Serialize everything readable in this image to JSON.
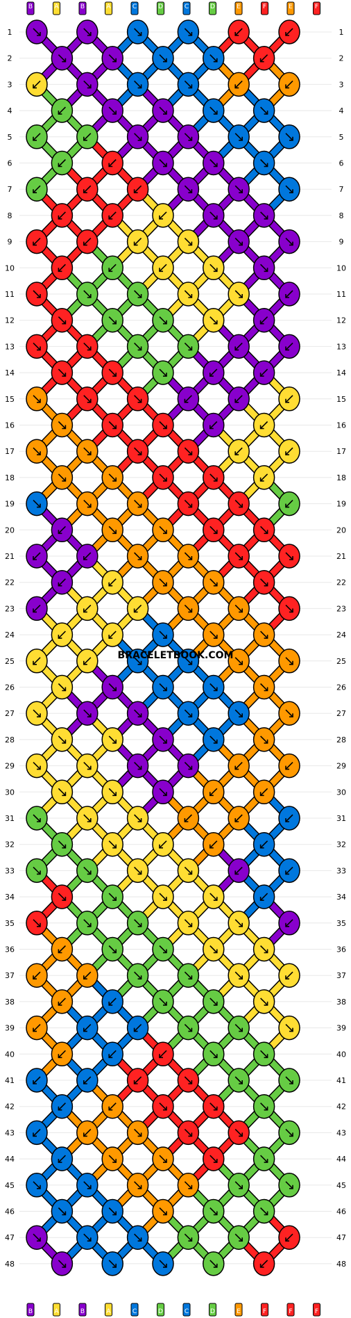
{
  "colors": {
    "B": "#8800cc",
    "A": "#ffdd33",
    "C": "#0077dd",
    "D": "#66cc44",
    "E": "#ff9900",
    "F": "#ff2222"
  },
  "top_strings": [
    "B",
    "A",
    "B",
    "A",
    "C",
    "D",
    "C",
    "D",
    "E",
    "F",
    "E",
    "F"
  ],
  "bottom_strings": [
    "B",
    "A",
    "B",
    "A",
    "C",
    "D",
    "C",
    "D",
    "E",
    "F",
    "F",
    "F"
  ],
  "row_numbers": [
    "1",
    "2",
    "3",
    "4",
    "5",
    "6",
    "7",
    "8",
    "9",
    "10",
    "11",
    "12",
    "13",
    "14",
    "15",
    "16",
    "17",
    "18",
    "19",
    "20",
    "21",
    "22",
    "23",
    "24",
    "25",
    "26",
    "27",
    "28",
    "29",
    "30",
    "31",
    "32",
    "33",
    "34",
    "35",
    "36",
    "37",
    "38",
    "39",
    "40",
    "41",
    "42",
    "43",
    "44",
    "45",
    "46",
    "47",
    "48"
  ],
  "watermark": "BRACELETBOOK.COM",
  "knots": [
    [
      "B",
      "B",
      "C",
      "C",
      "F",
      "F"
    ],
    [
      "B",
      "B",
      "C",
      "C",
      "F"
    ],
    [
      "A",
      "B",
      "C",
      "C",
      "E",
      "E"
    ],
    [
      "D",
      "B",
      "B",
      "C",
      "C"
    ],
    [
      "D",
      "D",
      "B",
      "B",
      "C",
      "C"
    ],
    [
      "D",
      "F",
      "B",
      "B",
      "C"
    ],
    [
      "D",
      "F",
      "F",
      "B",
      "B",
      "C"
    ],
    [
      "F",
      "F",
      "A",
      "B",
      "B"
    ],
    [
      "F",
      "F",
      "A",
      "A",
      "B",
      "B"
    ],
    [
      "F",
      "D",
      "A",
      "A",
      "B"
    ],
    [
      "F",
      "D",
      "D",
      "A",
      "A",
      "B"
    ],
    [
      "F",
      "D",
      "D",
      "A",
      "B"
    ],
    [
      "F",
      "F",
      "D",
      "D",
      "B",
      "B"
    ],
    [
      "F",
      "F",
      "D",
      "B",
      "B"
    ],
    [
      "E",
      "F",
      "F",
      "B",
      "B",
      "A"
    ],
    [
      "E",
      "F",
      "F",
      "B",
      "A"
    ],
    [
      "E",
      "E",
      "F",
      "F",
      "A",
      "A"
    ],
    [
      "E",
      "E",
      "F",
      "F",
      "A"
    ],
    [
      "C",
      "E",
      "E",
      "F",
      "F",
      "D"
    ],
    [
      "B",
      "E",
      "E",
      "F",
      "F"
    ],
    [
      "B",
      "B",
      "E",
      "E",
      "F",
      "F"
    ],
    [
      "B",
      "A",
      "E",
      "E",
      "F"
    ],
    [
      "B",
      "A",
      "A",
      "E",
      "E",
      "F"
    ],
    [
      "A",
      "A",
      "C",
      "E",
      "E"
    ],
    [
      "A",
      "A",
      "C",
      "C",
      "E",
      "E"
    ],
    [
      "A",
      "B",
      "C",
      "C",
      "E"
    ],
    [
      "A",
      "B",
      "B",
      "C",
      "C",
      "E"
    ],
    [
      "A",
      "A",
      "B",
      "C",
      "E"
    ],
    [
      "A",
      "A",
      "B",
      "B",
      "E",
      "E"
    ],
    [
      "A",
      "A",
      "B",
      "E",
      "E"
    ],
    [
      "D",
      "A",
      "A",
      "E",
      "E",
      "C"
    ],
    [
      "D",
      "A",
      "A",
      "E",
      "C"
    ],
    [
      "D",
      "D",
      "A",
      "A",
      "B",
      "C"
    ],
    [
      "F",
      "D",
      "A",
      "A",
      "C"
    ],
    [
      "F",
      "D",
      "D",
      "A",
      "A",
      "B"
    ],
    [
      "E",
      "D",
      "D",
      "A",
      "A"
    ],
    [
      "E",
      "E",
      "D",
      "D",
      "A",
      "A"
    ],
    [
      "E",
      "C",
      "D",
      "D",
      "A"
    ],
    [
      "E",
      "C",
      "C",
      "D",
      "D",
      "A"
    ],
    [
      "E",
      "C",
      "F",
      "D",
      "D"
    ],
    [
      "C",
      "C",
      "F",
      "F",
      "D",
      "D"
    ],
    [
      "C",
      "E",
      "F",
      "F",
      "D"
    ],
    [
      "C",
      "E",
      "E",
      "F",
      "F",
      "D"
    ],
    [
      "C",
      "E",
      "E",
      "F",
      "D"
    ],
    [
      "C",
      "C",
      "E",
      "E",
      "D",
      "D"
    ],
    [
      "C",
      "C",
      "E",
      "D",
      "D"
    ],
    [
      "B",
      "C",
      "C",
      "D",
      "D",
      "F"
    ],
    [
      "B",
      "C",
      "C",
      "D",
      "F"
    ]
  ],
  "arrows": [
    [
      "dr",
      "dr",
      "dr",
      "dr",
      "dl",
      "dl"
    ],
    [
      "dr",
      "dr",
      "dr",
      "dr",
      "dl"
    ],
    [
      "dl",
      "dr",
      "dr",
      "dr",
      "dl",
      "dl"
    ],
    [
      "dl",
      "dr",
      "dr",
      "dr",
      "dr"
    ],
    [
      "dl",
      "dl",
      "dr",
      "dr",
      "dr",
      "dr"
    ],
    [
      "dl",
      "dl",
      "dr",
      "dr",
      "dr"
    ],
    [
      "dl",
      "dl",
      "dl",
      "dr",
      "dr",
      "dr"
    ],
    [
      "dl",
      "dl",
      "dl",
      "dr",
      "dr"
    ],
    [
      "dl",
      "dl",
      "dl",
      "dr",
      "dr",
      "dr"
    ],
    [
      "dl",
      "dl",
      "dl",
      "dr",
      "dr"
    ],
    [
      "dr",
      "dr",
      "dr",
      "dr",
      "dr",
      "dl"
    ],
    [
      "dr",
      "dr",
      "dr",
      "dr",
      "dl"
    ],
    [
      "dr",
      "dr",
      "dr",
      "dr",
      "dl",
      "dl"
    ],
    [
      "dr",
      "dr",
      "dr",
      "dl",
      "dl"
    ],
    [
      "dr",
      "dr",
      "dr",
      "dl",
      "dl",
      "dl"
    ],
    [
      "dr",
      "dr",
      "dr",
      "dl",
      "dl"
    ],
    [
      "dr",
      "dr",
      "dr",
      "dr",
      "dl",
      "dl"
    ],
    [
      "dr",
      "dr",
      "dr",
      "dr",
      "dl"
    ],
    [
      "dr",
      "dr",
      "dr",
      "dr",
      "dr",
      "dl"
    ],
    [
      "dl",
      "dr",
      "dr",
      "dr",
      "dr"
    ],
    [
      "dl",
      "dl",
      "dr",
      "dr",
      "dr",
      "dr"
    ],
    [
      "dl",
      "dl",
      "dr",
      "dr",
      "dr"
    ],
    [
      "dl",
      "dl",
      "dl",
      "dr",
      "dr",
      "dr"
    ],
    [
      "dl",
      "dl",
      "dr",
      "dr",
      "dr"
    ],
    [
      "dl",
      "dl",
      "dr",
      "dr",
      "dr",
      "dr"
    ],
    [
      "dr",
      "dr",
      "dr",
      "dr",
      "dr"
    ],
    [
      "dr",
      "dr",
      "dr",
      "dr",
      "dr",
      "dr"
    ],
    [
      "dr",
      "dr",
      "dr",
      "dr",
      "dr"
    ],
    [
      "dr",
      "dr",
      "dr",
      "dr",
      "dl",
      "dl"
    ],
    [
      "dr",
      "dr",
      "dr",
      "dl",
      "dl"
    ],
    [
      "dr",
      "dr",
      "dr",
      "dl",
      "dl",
      "dl"
    ],
    [
      "dr",
      "dr",
      "dl",
      "dl",
      "dl"
    ],
    [
      "dr",
      "dr",
      "dr",
      "dr",
      "dl",
      "dl"
    ],
    [
      "dr",
      "dr",
      "dr",
      "dr",
      "dl"
    ],
    [
      "dr",
      "dr",
      "dr",
      "dr",
      "dr",
      "dl"
    ],
    [
      "dl",
      "dr",
      "dr",
      "dr",
      "dr"
    ],
    [
      "dl",
      "dl",
      "dr",
      "dr",
      "dr",
      "dl"
    ],
    [
      "dl",
      "dl",
      "dr",
      "dr",
      "dr"
    ],
    [
      "dl",
      "dl",
      "dl",
      "dr",
      "dr",
      "dr"
    ],
    [
      "dl",
      "dl",
      "dl",
      "dr",
      "dr"
    ],
    [
      "dl",
      "dl",
      "dl",
      "dr",
      "dr",
      "dr"
    ],
    [
      "dl",
      "dl",
      "dr",
      "dr",
      "dr"
    ],
    [
      "dl",
      "dl",
      "dr",
      "dr",
      "dr",
      "dr"
    ],
    [
      "dl",
      "dr",
      "dr",
      "dr",
      "dr"
    ],
    [
      "dr",
      "dr",
      "dr",
      "dr",
      "dr",
      "dr"
    ],
    [
      "dr",
      "dr",
      "dr",
      "dr",
      "dr"
    ],
    [
      "dr",
      "dr",
      "dr",
      "dr",
      "dr",
      "dl"
    ],
    [
      "dr",
      "dr",
      "dr",
      "dr",
      "dl"
    ]
  ]
}
